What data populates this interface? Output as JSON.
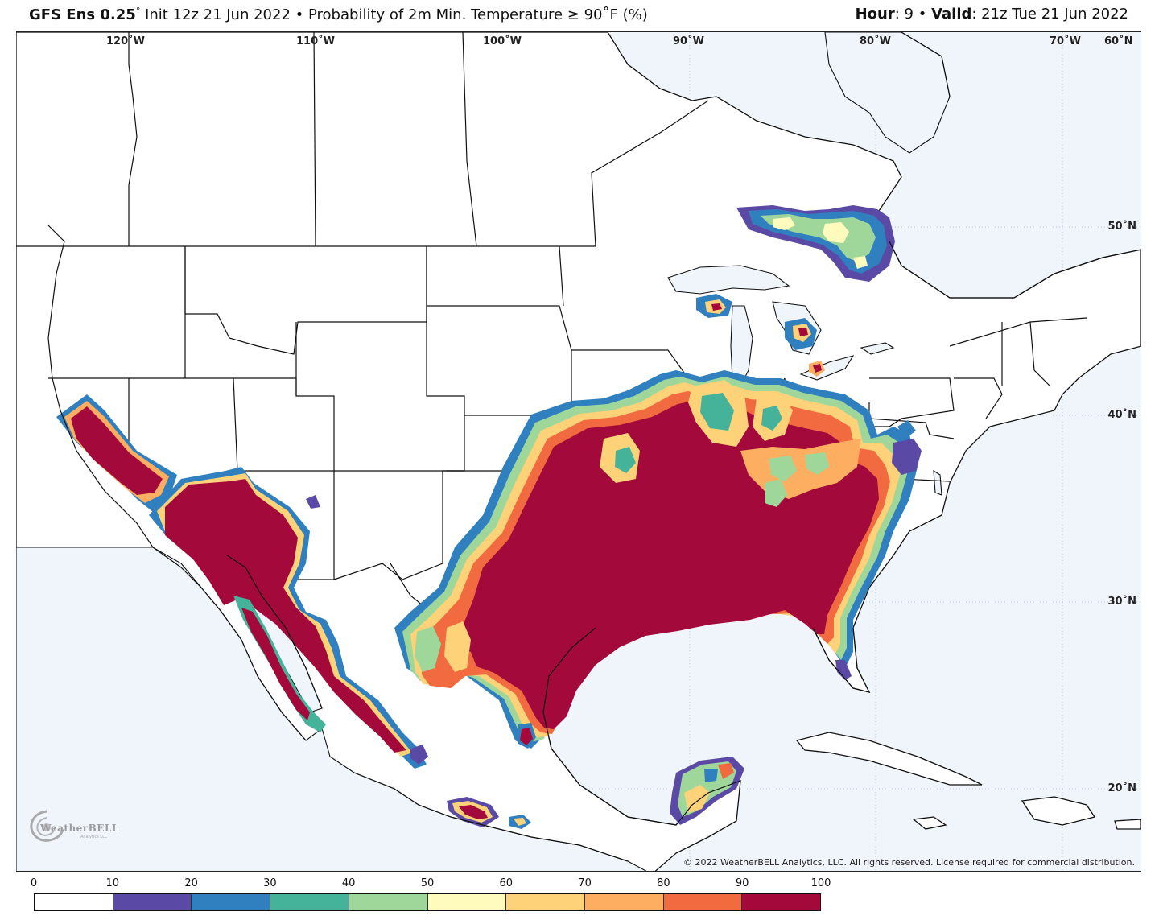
{
  "header": {
    "model": "GFS Ens 0.25",
    "degree": "°",
    "init": "Init 12z 21 Jun 2022",
    "bullet": "•",
    "product": "Probability of 2m Min. Temperature",
    "threshold": "≥ 90˚F (%)",
    "hour_label": "Hour",
    "hour_value": ": 9",
    "valid_label": "Valid",
    "valid_value": ": 21z Tue 21 Jun 2022"
  },
  "map": {
    "longitude_labels": [
      "120˚W",
      "110˚W",
      "100˚W",
      "90˚W",
      "80˚W",
      "70˚W",
      "60˚N"
    ],
    "latitude_labels": [
      "50˚N",
      "40˚N",
      "30˚N",
      "20˚N"
    ],
    "logo_text": "WeatherBELL",
    "logo_subtext": "Analytics LLC",
    "copyright": "© 2022 WeatherBELL Analytics, LLC. All rights reserved. License required for commercial distribution."
  },
  "legend": {
    "ticks": [
      "0",
      "10",
      "20",
      "30",
      "40",
      "50",
      "60",
      "70",
      "80",
      "90",
      "100"
    ],
    "colors": [
      "#ffffff",
      "#5a4aa6",
      "#3080c0",
      "#45b39a",
      "#9fd79a",
      "#fffbbd",
      "#fdd278",
      "#fdae61",
      "#f26a3f",
      "#a3093a"
    ]
  },
  "colors": {
    "map_background": "#f0f4fb",
    "land_outline": "#111111",
    "grid": "#b8c4d6"
  }
}
